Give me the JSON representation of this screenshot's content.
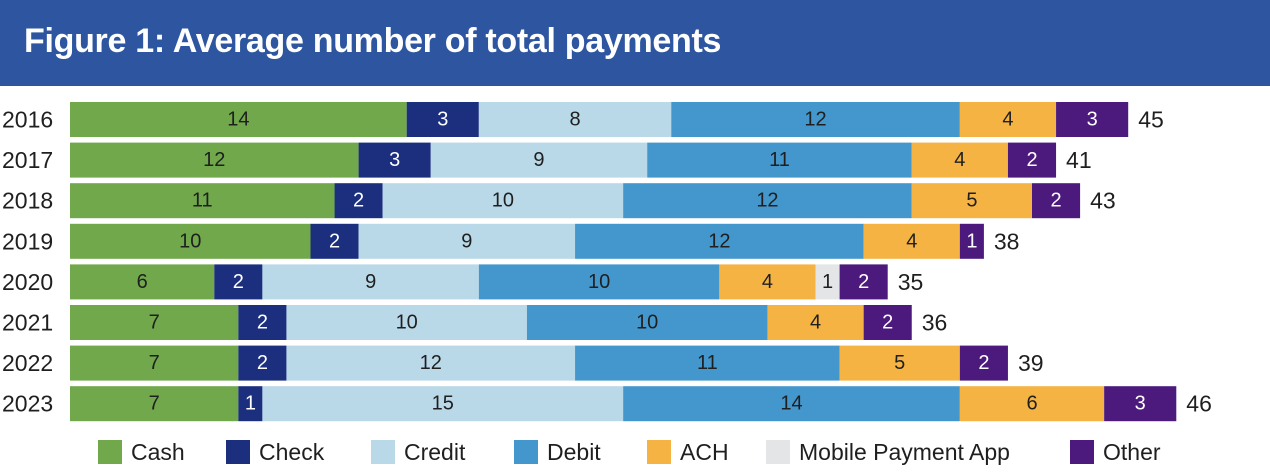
{
  "header": {
    "title": "Figure 1: Average number of total payments"
  },
  "chart_data": {
    "type": "bar",
    "orientation": "horizontal",
    "stacked": true,
    "title": "Figure 1: Average number of total payments",
    "categories": [
      "2016",
      "2017",
      "2018",
      "2019",
      "2020",
      "2021",
      "2022",
      "2023"
    ],
    "series": [
      {
        "name": "Cash",
        "color": "#70a84b",
        "text_color": "#1f1f1f",
        "values": [
          14,
          12,
          11,
          10,
          6,
          7,
          7,
          7
        ]
      },
      {
        "name": "Check",
        "color": "#1b2f7e",
        "text_color": "#ffffff",
        "values": [
          3,
          3,
          2,
          2,
          2,
          2,
          2,
          1
        ]
      },
      {
        "name": "Credit",
        "color": "#b9d9e8",
        "text_color": "#1f1f1f",
        "values": [
          8,
          9,
          10,
          9,
          9,
          10,
          12,
          15
        ]
      },
      {
        "name": "Debit",
        "color": "#4497cc",
        "text_color": "#1f1f1f",
        "values": [
          12,
          11,
          12,
          12,
          10,
          10,
          11,
          14
        ]
      },
      {
        "name": "ACH",
        "color": "#f4b343",
        "text_color": "#1f1f1f",
        "values": [
          4,
          4,
          5,
          4,
          4,
          4,
          5,
          6
        ]
      },
      {
        "name": "Mobile Payment App",
        "color": "#e3e5e7",
        "text_color": "#1f1f1f",
        "values": [
          null,
          null,
          null,
          null,
          1,
          null,
          null,
          null
        ]
      },
      {
        "name": "Other",
        "color": "#4b1a7c",
        "text_color": "#ffffff",
        "values": [
          3,
          2,
          2,
          1,
          2,
          2,
          2,
          3
        ]
      }
    ],
    "totals": [
      45,
      41,
      43,
      38,
      35,
      36,
      39,
      46
    ],
    "legend_position": "bottom",
    "grid": false
  }
}
